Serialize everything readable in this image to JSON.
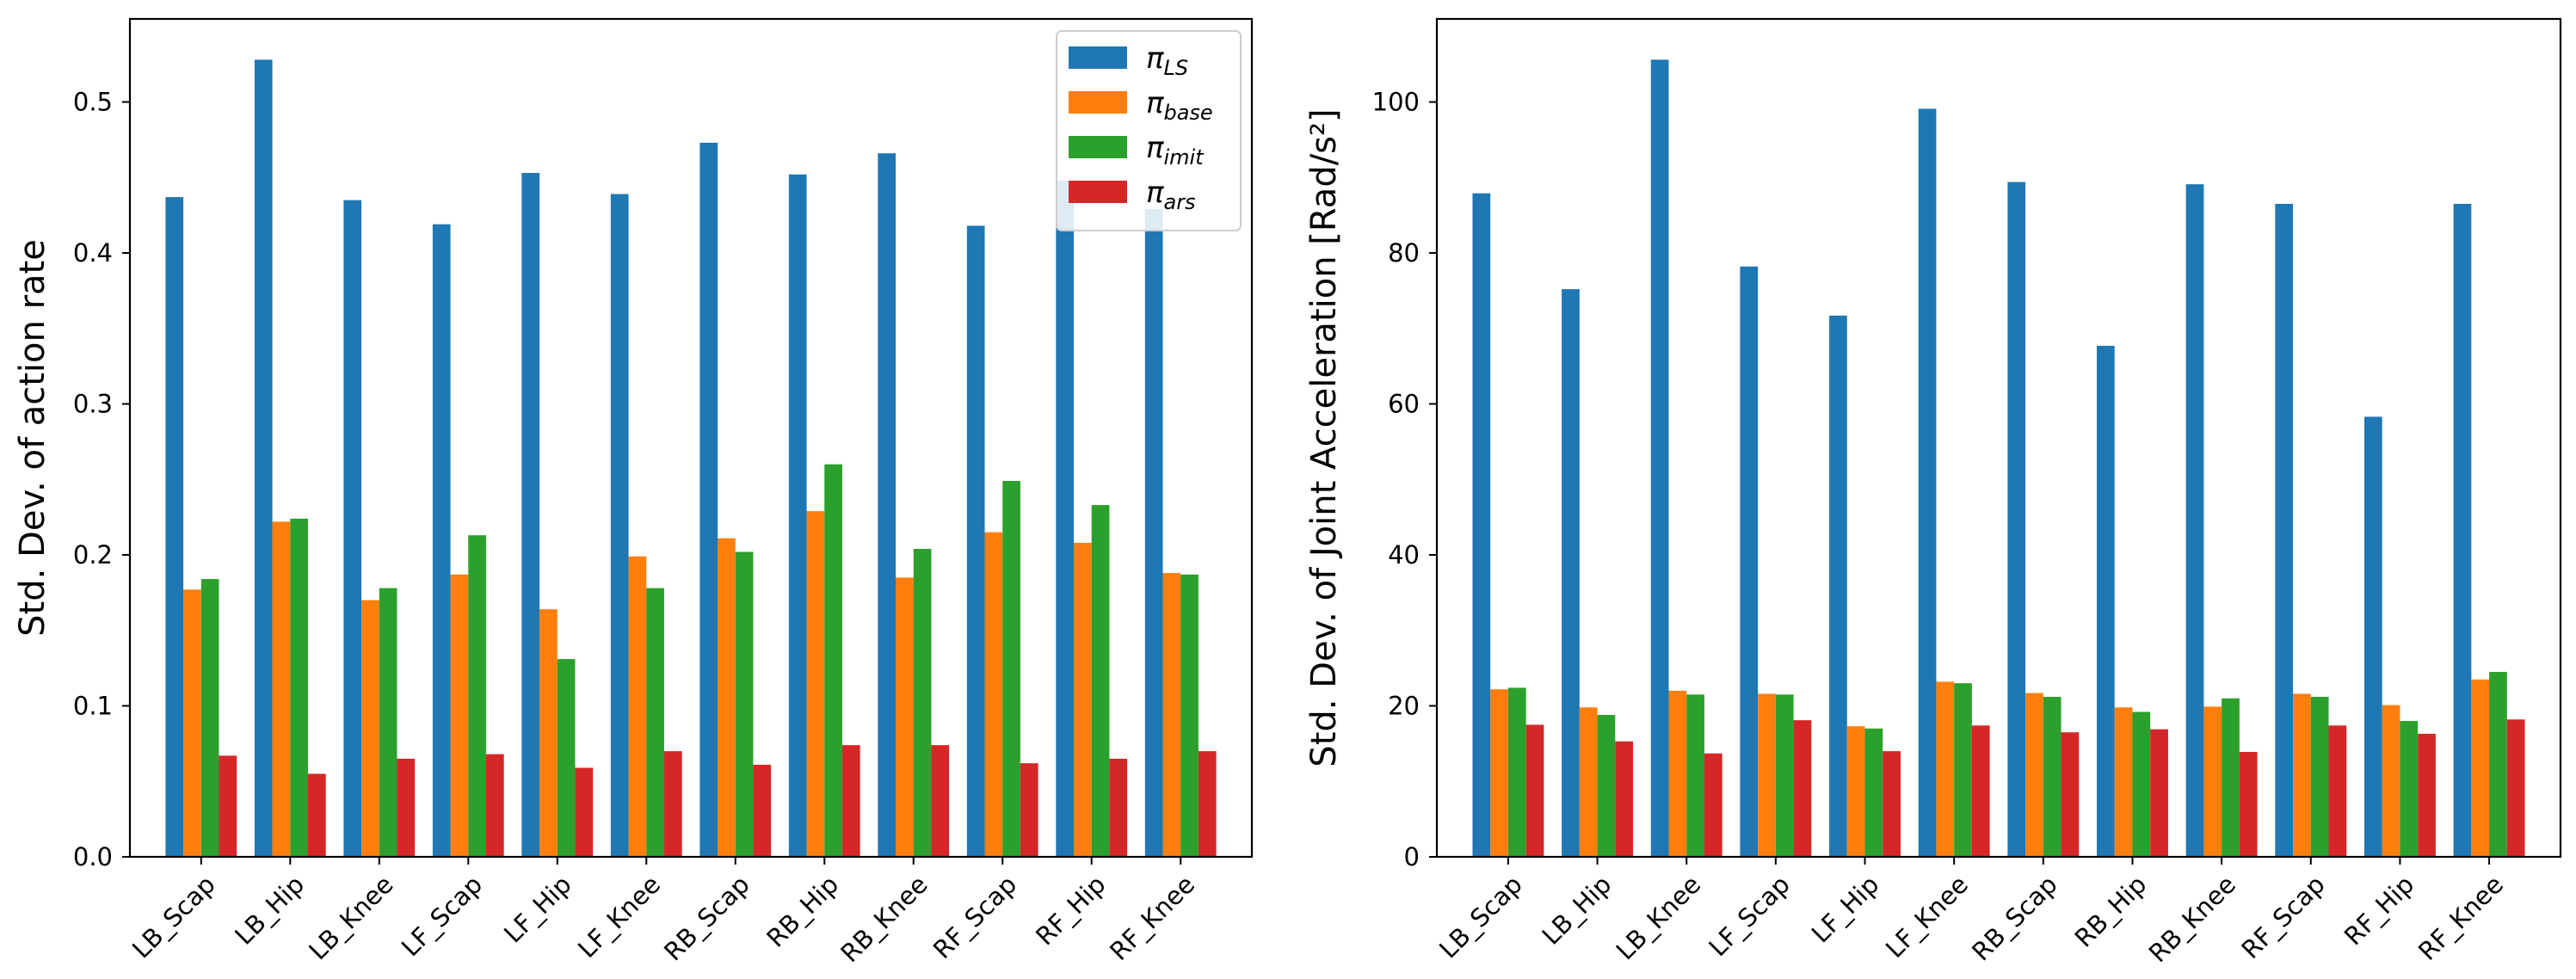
{
  "colors": {
    "pi_LS": "#1f77b4",
    "pi_base": "#ff7f0e",
    "pi_imit": "#2ca02c",
    "pi_ars": "#d62728"
  },
  "legend": {
    "entries": [
      {
        "symbol": "π",
        "subscript": "LS",
        "series": "pi_LS"
      },
      {
        "symbol": "π",
        "subscript": "base",
        "series": "pi_base"
      },
      {
        "symbol": "π",
        "subscript": "imit",
        "series": "pi_imit"
      },
      {
        "symbol": "π",
        "subscript": "ars",
        "series": "pi_ars"
      }
    ]
  },
  "chart_data": [
    {
      "type": "bar",
      "title": "",
      "xlabel": "",
      "ylabel": "Std. Dev. of action rate",
      "ylim": [
        0,
        0.555
      ],
      "yticks": [
        0.0,
        0.1,
        0.2,
        0.3,
        0.4,
        0.5
      ],
      "ytick_labels": [
        "0.0",
        "0.1",
        "0.2",
        "0.3",
        "0.4",
        "0.5"
      ],
      "legend_placement": "top-right",
      "categories": [
        "LB_Scap",
        "LB_Hip",
        "LB_Knee",
        "LF_Scap",
        "LF_Hip",
        "LF_Knee",
        "RB_Scap",
        "RB_Hip",
        "RB_Knee",
        "RF_Scap",
        "RF_Hip",
        "RF_Knee"
      ],
      "series": [
        {
          "name": "pi_LS",
          "values": [
            0.437,
            0.528,
            0.435,
            0.419,
            0.453,
            0.439,
            0.473,
            0.452,
            0.466,
            0.418,
            0.448,
            0.429
          ]
        },
        {
          "name": "pi_base",
          "values": [
            0.177,
            0.222,
            0.17,
            0.187,
            0.164,
            0.199,
            0.211,
            0.229,
            0.185,
            0.215,
            0.208,
            0.188
          ]
        },
        {
          "name": "pi_imit",
          "values": [
            0.184,
            0.224,
            0.178,
            0.213,
            0.131,
            0.178,
            0.202,
            0.26,
            0.204,
            0.249,
            0.233,
            0.187
          ]
        },
        {
          "name": "pi_ars",
          "values": [
            0.067,
            0.055,
            0.065,
            0.068,
            0.059,
            0.07,
            0.061,
            0.074,
            0.074,
            0.062,
            0.065,
            0.07
          ]
        }
      ]
    },
    {
      "type": "bar",
      "title": "",
      "xlabel": "",
      "ylabel": "Std. Dev. of Joint Acceleration [Rad/s²]",
      "ylim": [
        0,
        111
      ],
      "yticks": [
        0,
        20,
        40,
        60,
        80,
        100
      ],
      "ytick_labels": [
        "0",
        "20",
        "40",
        "60",
        "80",
        "100"
      ],
      "categories": [
        "LB_Scap",
        "LB_Hip",
        "LB_Knee",
        "LF_Scap",
        "LF_Hip",
        "LF_Knee",
        "RB_Scap",
        "RB_Hip",
        "RB_Knee",
        "RF_Scap",
        "RF_Hip",
        "RF_Knee"
      ],
      "series": [
        {
          "name": "pi_LS",
          "values": [
            87.9,
            75.2,
            105.6,
            78.2,
            71.7,
            99.1,
            89.4,
            67.7,
            89.1,
            86.5,
            58.3,
            86.5
          ]
        },
        {
          "name": "pi_base",
          "values": [
            22.2,
            19.8,
            22.0,
            21.6,
            17.3,
            23.2,
            21.7,
            19.8,
            19.9,
            21.6,
            20.1,
            23.5
          ]
        },
        {
          "name": "pi_imit",
          "values": [
            22.4,
            18.8,
            21.5,
            21.5,
            17.0,
            23.0,
            21.2,
            19.2,
            21.0,
            21.2,
            18.0,
            24.5
          ]
        },
        {
          "name": "pi_ars",
          "values": [
            17.5,
            15.3,
            13.7,
            18.1,
            14.0,
            17.4,
            16.5,
            16.9,
            13.9,
            17.4,
            16.3,
            18.2
          ]
        }
      ]
    }
  ]
}
